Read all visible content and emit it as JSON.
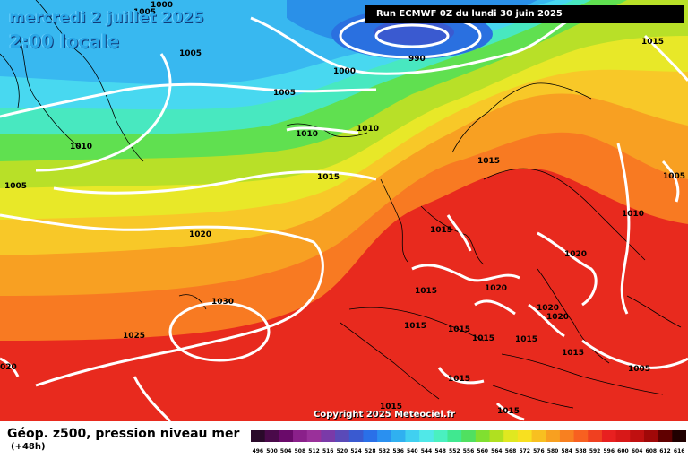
{
  "header": {
    "date": "mercredi 2 juillet 2025",
    "time": "2:00 locale",
    "run": "Run ECMWF 0Z du lundi 30 juin 2025"
  },
  "footer": {
    "parameter": "Géop. z500, pression niveau mer",
    "lead_time": "(+48h)",
    "copyright": "Copyright 2025 Meteociel.fr"
  },
  "isobar_labels": [
    {
      "text": "1000"
    },
    {
      "text": "1005"
    },
    {
      "text": "1005"
    },
    {
      "text": "990"
    },
    {
      "text": "1015"
    },
    {
      "text": "1000"
    },
    {
      "text": "1005"
    },
    {
      "text": "1010"
    },
    {
      "text": "1010"
    },
    {
      "text": "1010"
    },
    {
      "text": "1015"
    },
    {
      "text": "1005"
    },
    {
      "text": "1015"
    },
    {
      "text": "1005"
    },
    {
      "text": "1010"
    },
    {
      "text": "1020"
    },
    {
      "text": "1015"
    },
    {
      "text": "1020"
    },
    {
      "text": "1030"
    },
    {
      "text": "1025"
    },
    {
      "text": "1015"
    },
    {
      "text": "1020"
    },
    {
      "text": "1020"
    },
    {
      "text": "1020"
    },
    {
      "text": "1015"
    },
    {
      "text": "1015"
    },
    {
      "text": "1015"
    },
    {
      "text": "1015"
    },
    {
      "text": "1015"
    },
    {
      "text": "020"
    },
    {
      "text": "1005"
    },
    {
      "text": "1015"
    },
    {
      "text": "1015"
    },
    {
      "text": "1015"
    }
  ],
  "legend": {
    "values": [
      "496",
      "500",
      "504",
      "508",
      "512",
      "516",
      "520",
      "524",
      "528",
      "532",
      "536",
      "540",
      "544",
      "548",
      "552",
      "556",
      "560",
      "564",
      "568",
      "572",
      "576",
      "580",
      "584",
      "588",
      "592",
      "596",
      "600",
      "604",
      "608",
      "612",
      "616"
    ],
    "colors": [
      "#2a0a2a",
      "#4a0a4a",
      "#6a0a6a",
      "#8a208a",
      "#9a309a",
      "#7a3aa8",
      "#5a4ab8",
      "#3a5ad0",
      "#2a70e8",
      "#2a90f0",
      "#30b0f0",
      "#40d0f0",
      "#50e8e8",
      "#4af0c0",
      "#40e890",
      "#50e060",
      "#80e030",
      "#b0e020",
      "#e0e820",
      "#f8e020",
      "#f8c020",
      "#f8a020",
      "#f88020",
      "#f86020",
      "#f04020",
      "#e82020",
      "#d81818",
      "#c01010",
      "#a00808",
      "#600000",
      "#200000"
    ]
  },
  "colors": {
    "low_core": "#1e5ad8",
    "low": "#2aa8e8",
    "cyan": "#40d0f0",
    "green": "#60e060",
    "yellow": "#e8e820",
    "orange": "#f8a020",
    "red": "#f04020",
    "deep_red": "#e82020"
  }
}
